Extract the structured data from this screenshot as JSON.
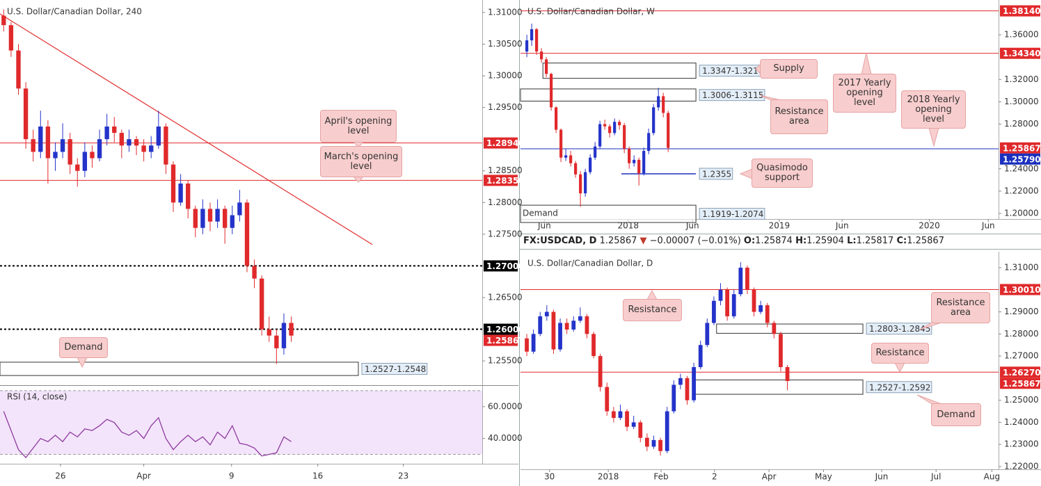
{
  "header": {
    "symbol": "FX:USDCAD, D",
    "price": "1.25867",
    "arrow": "▼",
    "change": "−0.00007 (−0.01%)",
    "open_label": "O:",
    "open": "1.25874",
    "high_label": "H:",
    "high": "1.25904",
    "low_label": "L:",
    "low": "1.25817",
    "close_label": "C:",
    "close": "1.25867"
  },
  "chart_data": [
    {
      "type": "candlestick",
      "title": "U.S. Dollar/Canadian Dollar, 240",
      "up_color": "#2433c9",
      "down_color": "#e0292b",
      "xlim": [
        -0.5,
        64.9
      ],
      "ylim": [
        1.25128,
        1.31197
      ],
      "xticks": [
        {
          "value": 7.7,
          "label": "26"
        },
        {
          "value": 19.0,
          "label": "Apr"
        },
        {
          "value": 30.9,
          "label": "9"
        },
        {
          "value": 42.6,
          "label": "16"
        },
        {
          "value": 54.2,
          "label": "23"
        }
      ],
      "yticks": [
        {
          "value": 1.31,
          "label": "1.31000"
        },
        {
          "value": 1.305,
          "label": "1.30500"
        },
        {
          "value": 1.3,
          "label": "1.30000"
        },
        {
          "value": 1.295,
          "label": "1.29500"
        },
        {
          "value": 1.285,
          "label": "1.28500"
        },
        {
          "value": 1.28,
          "label": "1.28000"
        },
        {
          "value": 1.275,
          "label": "1.27500"
        },
        {
          "value": 1.265,
          "label": "1.26500"
        },
        {
          "value": 1.255,
          "label": "1.25500"
        }
      ],
      "ohlc": [
        [
          1.3095,
          1.3105,
          1.307,
          1.308
        ],
        [
          1.308,
          1.3085,
          1.303,
          1.304
        ],
        [
          1.304,
          1.305,
          1.297,
          1.298
        ],
        [
          1.298,
          1.299,
          1.2885,
          1.29
        ],
        [
          1.29,
          1.2915,
          1.2865,
          1.288
        ],
        [
          1.288,
          1.2945,
          1.287,
          1.292
        ],
        [
          1.292,
          1.293,
          1.283,
          1.287
        ],
        [
          1.287,
          1.2895,
          1.285,
          1.288
        ],
        [
          1.288,
          1.2925,
          1.287,
          1.29
        ],
        [
          1.29,
          1.291,
          1.2845,
          1.286
        ],
        [
          1.286,
          1.287,
          1.2825,
          1.285
        ],
        [
          1.285,
          1.2895,
          1.284,
          1.288
        ],
        [
          1.288,
          1.289,
          1.2855,
          1.287
        ],
        [
          1.287,
          1.2915,
          1.2865,
          1.29
        ],
        [
          1.29,
          1.294,
          1.289,
          1.292
        ],
        [
          1.292,
          1.2935,
          1.2895,
          1.291
        ],
        [
          1.291,
          1.2915,
          1.287,
          1.289
        ],
        [
          1.289,
          1.2915,
          1.288,
          1.29
        ],
        [
          1.29,
          1.2905,
          1.2875,
          1.289
        ],
        [
          1.289,
          1.29,
          1.2865,
          1.288
        ],
        [
          1.288,
          1.2905,
          1.287,
          1.289
        ],
        [
          1.289,
          1.2945,
          1.2885,
          1.292
        ],
        [
          1.292,
          1.2925,
          1.2845,
          1.286
        ],
        [
          1.286,
          1.2865,
          1.2785,
          1.28
        ],
        [
          1.28,
          1.2845,
          1.2795,
          1.283
        ],
        [
          1.283,
          1.2835,
          1.2775,
          1.279
        ],
        [
          1.279,
          1.2795,
          1.2745,
          1.276
        ],
        [
          1.276,
          1.2805,
          1.275,
          1.279
        ],
        [
          1.279,
          1.28,
          1.2755,
          1.277
        ],
        [
          1.277,
          1.2805,
          1.276,
          1.279
        ],
        [
          1.279,
          1.2795,
          1.2735,
          1.276
        ],
        [
          1.276,
          1.2795,
          1.275,
          1.278
        ],
        [
          1.278,
          1.282,
          1.277,
          1.28
        ],
        [
          1.28,
          1.2805,
          1.269,
          1.27
        ],
        [
          1.27,
          1.271,
          1.2665,
          1.268
        ],
        [
          1.268,
          1.2685,
          1.259,
          1.26
        ],
        [
          1.26,
          1.262,
          1.258,
          1.259
        ],
        [
          1.259,
          1.26,
          1.2545,
          1.257
        ],
        [
          1.257,
          1.2625,
          1.256,
          1.261
        ],
        [
          1.261,
          1.262,
          1.258,
          1.259
        ]
      ],
      "levels": [
        {
          "value": 1.2894,
          "label": "1.28940",
          "color": "#e0292b",
          "line": "solid"
        },
        {
          "value": 1.2835,
          "label": "1.28350",
          "color": "#e0292b",
          "line": "solid"
        },
        {
          "value": 1.27,
          "label": "1.27000",
          "color": "#000000",
          "line": "dotted"
        },
        {
          "value": 1.26,
          "label": "1.26000",
          "color": "#000000",
          "line": "dotted"
        },
        {
          "value": 1.25867,
          "label": "1.25867",
          "color": "#e0292b",
          "line": "none"
        }
      ],
      "zones": [
        {
          "from": -0.5,
          "to": 48.1,
          "low": 1.2527,
          "high": 1.2548,
          "label": "1.2527-1.2548"
        }
      ],
      "trendline": {
        "x": [
          -0.5,
          50.0
        ],
        "y": [
          1.30978,
          1.27337
        ],
        "color": "#e0292b"
      },
      "callouts": [
        "Demand",
        "April's opening level",
        "March's opening level"
      ],
      "rsi": {
        "title": "RSI (14, close)",
        "color": "#8e3a9e",
        "ylim": [
          25,
          73
        ],
        "band": [
          30,
          70
        ],
        "yticks": [
          {
            "value": 60,
            "label": "60.0000"
          },
          {
            "value": 40,
            "label": "40.0000"
          }
        ],
        "values": [
          57,
          45,
          33,
          28,
          34,
          40,
          38,
          42,
          38,
          44,
          41,
          46,
          45,
          48,
          52,
          50,
          44,
          42,
          45,
          40,
          48,
          53,
          40,
          33,
          38,
          42,
          38,
          41,
          36,
          44,
          40,
          48,
          37,
          36,
          34,
          29,
          30,
          31,
          41,
          38
        ]
      }
    },
    {
      "type": "candlestick",
      "title": "U.S. Dollar/Canadian Dollar, W",
      "up_color": "#2433c9",
      "down_color": "#e0292b",
      "xlim": [
        -1.3,
        96.8
      ],
      "ylim": [
        1.19502,
        1.39113
      ],
      "xticks": [
        {
          "value": 3.6,
          "label": "Jun"
        },
        {
          "value": 20.8,
          "label": "2018"
        },
        {
          "value": 34.0,
          "label": "Jun"
        },
        {
          "value": 51.8,
          "label": "2019"
        },
        {
          "value": 64.7,
          "label": "Jun"
        },
        {
          "value": 82.6,
          "label": "2020"
        },
        {
          "value": 94.7,
          "label": "Jun"
        }
      ],
      "yticks": [
        {
          "value": 1.36,
          "label": "1.36000"
        },
        {
          "value": 1.32,
          "label": "1.32000"
        },
        {
          "value": 1.3,
          "label": "1.30000"
        },
        {
          "value": 1.28,
          "label": "1.28000"
        },
        {
          "value": 1.24,
          "label": "1.24000"
        },
        {
          "value": 1.22,
          "label": "1.22000"
        },
        {
          "value": 1.2,
          "label": "1.20000"
        }
      ],
      "ohlc": [
        [
          1.345,
          1.36,
          1.34,
          1.355
        ],
        [
          1.355,
          1.37,
          1.35,
          1.365
        ],
        [
          1.365,
          1.366,
          1.342,
          1.345
        ],
        [
          1.345,
          1.348,
          1.335,
          1.338
        ],
        [
          1.338,
          1.34,
          1.322,
          1.325
        ],
        [
          1.325,
          1.326,
          1.292,
          1.295
        ],
        [
          1.295,
          1.296,
          1.272,
          1.275
        ],
        [
          1.275,
          1.276,
          1.246,
          1.25
        ],
        [
          1.25,
          1.258,
          1.247,
          1.252
        ],
        [
          1.252,
          1.256,
          1.242,
          1.245
        ],
        [
          1.245,
          1.247,
          1.232,
          1.235
        ],
        [
          1.235,
          1.238,
          1.206,
          1.218
        ],
        [
          1.218,
          1.24,
          1.215,
          1.237
        ],
        [
          1.237,
          1.253,
          1.235,
          1.25
        ],
        [
          1.25,
          1.264,
          1.248,
          1.26
        ],
        [
          1.26,
          1.283,
          1.258,
          1.28
        ],
        [
          1.28,
          1.284,
          1.275,
          1.278
        ],
        [
          1.278,
          1.28,
          1.268,
          1.272
        ],
        [
          1.272,
          1.285,
          1.27,
          1.282
        ],
        [
          1.282,
          1.284,
          1.275,
          1.279
        ],
        [
          1.279,
          1.281,
          1.254,
          1.258
        ],
        [
          1.258,
          1.26,
          1.24,
          1.245
        ],
        [
          1.245,
          1.252,
          1.242,
          1.248
        ],
        [
          1.248,
          1.25,
          1.225,
          1.236
        ],
        [
          1.236,
          1.259,
          1.234,
          1.256
        ],
        [
          1.256,
          1.276,
          1.253,
          1.272
        ],
        [
          1.272,
          1.298,
          1.27,
          1.295
        ],
        [
          1.295,
          1.3125,
          1.292,
          1.305
        ],
        [
          1.305,
          1.308,
          1.286,
          1.29
        ],
        [
          1.29,
          1.292,
          1.255,
          1.2587
        ]
      ],
      "levels": [
        {
          "value": 1.3814,
          "label": "1.38140",
          "color": "#e0292b",
          "line": "solid"
        },
        {
          "value": 1.3434,
          "label": "1.34340",
          "color": "#e0292b",
          "line": "solid"
        },
        {
          "value": 1.25867,
          "label": "1.25867",
          "color": "#e0292b",
          "line": "none"
        },
        {
          "value": 1.2579,
          "label": "1.25790",
          "color": "#1a2fbf",
          "line": "solid"
        }
      ],
      "zones": [
        {
          "from": 3.3,
          "to": 34.7,
          "low": 1.321,
          "high": 1.3347,
          "label": "1.3347-1.3210"
        },
        {
          "from": -1.3,
          "to": 34.7,
          "low": 1.3006,
          "high": 1.3115,
          "label": "1.3006-1.3115"
        },
        {
          "from": 19.4,
          "to": 34.7,
          "low": 1.2355,
          "high": 1.2355,
          "label": "1.2355",
          "color": "#1a2fbf"
        },
        {
          "from": -1.3,
          "to": 34.7,
          "low": 1.1919,
          "high": 1.2074,
          "label": "1.1919-1.2074",
          "text": "Demand"
        }
      ],
      "callouts": [
        "Supply",
        "Resistance area",
        "Quasimodo support",
        "2017 Yearly opening level",
        "2018 Yearly opening level"
      ]
    },
    {
      "type": "candlestick",
      "title": "U.S. Dollar/Canadian Dollar, D",
      "up_color": "#2433c9",
      "down_color": "#e0292b",
      "xlim": [
        -0.94,
        70.6
      ],
      "ylim": [
        1.21874,
        1.31724
      ],
      "xticks": [
        {
          "value": 3.4,
          "label": "30"
        },
        {
          "value": 12.2,
          "label": "2018"
        },
        {
          "value": 20.1,
          "label": "Feb"
        },
        {
          "value": 28.1,
          "label": "2"
        },
        {
          "value": 36.25,
          "label": "Apr"
        },
        {
          "value": 44.4,
          "label": "May"
        },
        {
          "value": 53.1,
          "label": "Jun"
        },
        {
          "value": 61.25,
          "label": "Jul"
        },
        {
          "value": 69.6,
          "label": "Aug"
        }
      ],
      "yticks": [
        {
          "value": 1.31,
          "label": "1.31000"
        },
        {
          "value": 1.29,
          "label": "1.29000"
        },
        {
          "value": 1.28,
          "label": "1.28000"
        },
        {
          "value": 1.27,
          "label": "1.27000"
        },
        {
          "value": 1.25,
          "label": "1.25000"
        },
        {
          "value": 1.24,
          "label": "1.24000"
        },
        {
          "value": 1.23,
          "label": "1.23000"
        },
        {
          "value": 1.22,
          "label": "1.22000"
        }
      ],
      "ohlc": [
        [
          1.278,
          1.28,
          1.27,
          1.272
        ],
        [
          1.272,
          1.282,
          1.271,
          1.28
        ],
        [
          1.28,
          1.29,
          1.279,
          1.288
        ],
        [
          1.288,
          1.293,
          1.286,
          1.29
        ],
        [
          1.29,
          1.291,
          1.271,
          1.273
        ],
        [
          1.273,
          1.287,
          1.272,
          1.285
        ],
        [
          1.285,
          1.287,
          1.28,
          1.282
        ],
        [
          1.282,
          1.288,
          1.281,
          1.286
        ],
        [
          1.286,
          1.292,
          1.285,
          1.288
        ],
        [
          1.288,
          1.289,
          1.278,
          1.28
        ],
        [
          1.28,
          1.281,
          1.269,
          1.27
        ],
        [
          1.27,
          1.271,
          1.254,
          1.256
        ],
        [
          1.256,
          1.258,
          1.243,
          1.245
        ],
        [
          1.245,
          1.247,
          1.24,
          1.242
        ],
        [
          1.242,
          1.248,
          1.241,
          1.245
        ],
        [
          1.245,
          1.246,
          1.236,
          1.238
        ],
        [
          1.238,
          1.243,
          1.237,
          1.24
        ],
        [
          1.24,
          1.241,
          1.231,
          1.233
        ],
        [
          1.233,
          1.235,
          1.227,
          1.229
        ],
        [
          1.229,
          1.234,
          1.228,
          1.232
        ],
        [
          1.232,
          1.233,
          1.225,
          1.227
        ],
        [
          1.227,
          1.247,
          1.226,
          1.245
        ],
        [
          1.245,
          1.259,
          1.244,
          1.257
        ],
        [
          1.257,
          1.262,
          1.255,
          1.26
        ],
        [
          1.26,
          1.261,
          1.248,
          1.25
        ],
        [
          1.25,
          1.267,
          1.249,
          1.265
        ],
        [
          1.265,
          1.277,
          1.264,
          1.275
        ],
        [
          1.275,
          1.287,
          1.274,
          1.285
        ],
        [
          1.285,
          1.297,
          1.284,
          1.295
        ],
        [
          1.295,
          1.303,
          1.293,
          1.3
        ],
        [
          1.3,
          1.301,
          1.286,
          1.288
        ],
        [
          1.288,
          1.3,
          1.287,
          1.298
        ],
        [
          1.298,
          1.3125,
          1.297,
          1.31
        ],
        [
          1.31,
          1.311,
          1.298,
          1.3
        ],
        [
          1.3,
          1.301,
          1.288,
          1.29
        ],
        [
          1.29,
          1.295,
          1.289,
          1.293
        ],
        [
          1.293,
          1.294,
          1.283,
          1.285
        ],
        [
          1.285,
          1.286,
          1.278,
          1.28
        ],
        [
          1.28,
          1.281,
          1.263,
          1.265
        ],
        [
          1.265,
          1.266,
          1.2545,
          1.2587
        ]
      ],
      "levels": [
        {
          "value": 1.3001,
          "label": "1.30010",
          "color": "#e0292b",
          "line": "solid"
        },
        {
          "value": 1.2627,
          "label": "1.26270",
          "color": "#e0292b",
          "line": "solid"
        },
        {
          "value": 1.25867,
          "label": "1.25867",
          "color": "#e0292b",
          "line": "none"
        }
      ],
      "zones": [
        {
          "from": 28.4,
          "to": 50.3,
          "low": 1.2803,
          "high": 1.2845,
          "label": "1.2803-1.2845"
        },
        {
          "from": 24.8,
          "to": 50.3,
          "low": 1.2527,
          "high": 1.2592,
          "label": "1.2527-1.2592"
        }
      ],
      "callouts": [
        "Resistance",
        "Resistance area",
        "Resistance",
        "Demand"
      ]
    }
  ]
}
